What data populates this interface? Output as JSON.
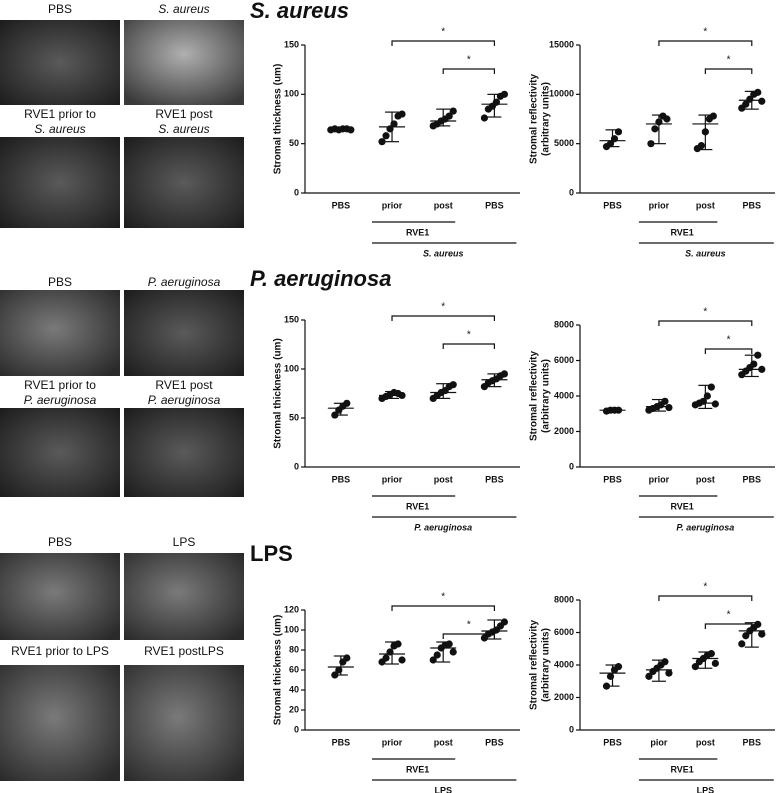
{
  "panels": [
    {
      "title": "S. aureus",
      "images": [
        [
          "PBS"
        ],
        [
          "S. aureus"
        ],
        [
          "RVE1 prior to",
          "S. aureus"
        ],
        [
          "RVE1 post",
          "S. aureus"
        ]
      ]
    },
    {
      "title": "P. aeruginosa",
      "images": [
        [
          "PBS"
        ],
        [
          "P. aeruginosa"
        ],
        [
          "RVE1 prior to",
          "P. aeruginosa"
        ],
        [
          "RVE1 post",
          "P. aeruginosa"
        ]
      ]
    },
    {
      "title": "LPS",
      "images": [
        [
          "PBS"
        ],
        [
          "LPS"
        ],
        [
          "RVE1 prior to LPS"
        ],
        [
          "RVE1 postLPS"
        ]
      ]
    }
  ],
  "chart_data": [
    {
      "type": "scatter",
      "ylabel": [
        "Stromal thickness (um)"
      ],
      "categories": [
        "PBS",
        "prior",
        "post",
        "PBS"
      ],
      "group_labels": [
        "RVE1",
        "S. aureus"
      ],
      "annotations": [
        "*",
        "*"
      ],
      "ylim": [
        0,
        150
      ],
      "yticks": [
        0,
        50,
        100,
        150
      ],
      "color": "#111111",
      "values": [
        [
          64,
          65,
          64,
          65,
          65,
          64
        ],
        [
          52,
          58,
          65,
          70,
          78,
          80
        ],
        [
          68,
          70,
          73,
          75,
          78,
          83
        ],
        [
          76,
          85,
          88,
          92,
          98,
          100
        ]
      ],
      "centers": [
        65,
        67,
        73,
        90
      ],
      "lows": [
        63,
        52,
        68,
        77
      ],
      "highs": [
        66,
        82,
        85,
        100
      ]
    },
    {
      "type": "scatter",
      "ylabel": [
        "Stromal reflectivity",
        "(arbitrary units)"
      ],
      "categories": [
        "PBS",
        "prior",
        "post",
        "PBS"
      ],
      "group_labels": [
        "RVE1",
        "S. aureus"
      ],
      "annotations": [
        "*",
        "*"
      ],
      "ylim": [
        0,
        15000
      ],
      "yticks": [
        0,
        5000,
        10000,
        15000
      ],
      "color": "#111111",
      "values": [
        [
          4700,
          5000,
          5500,
          6200
        ],
        [
          5000,
          6500,
          7200,
          7800,
          7500
        ],
        [
          4500,
          4800,
          6200,
          7500,
          7800
        ],
        [
          8600,
          9000,
          9500,
          10000,
          10200,
          9300
        ]
      ],
      "centers": [
        5300,
        7000,
        7000,
        9400
      ],
      "lows": [
        4700,
        5000,
        4400,
        8500
      ],
      "highs": [
        6400,
        7900,
        7900,
        10300
      ]
    },
    {
      "type": "scatter",
      "ylabel": [
        "Stromal thickness (um)"
      ],
      "categories": [
        "PBS",
        "prior",
        "post",
        "PBS"
      ],
      "group_labels": [
        "RVE1",
        "P. aeruginosa"
      ],
      "annotations": [
        "*",
        "*"
      ],
      "ylim": [
        0,
        150
      ],
      "yticks": [
        0,
        50,
        100,
        150
      ],
      "color": "#111111",
      "values": [
        [
          53,
          58,
          62,
          65
        ],
        [
          70,
          72,
          74,
          76,
          75,
          73
        ],
        [
          70,
          73,
          76,
          78,
          82,
          84
        ],
        [
          82,
          86,
          88,
          90,
          93,
          95
        ]
      ],
      "centers": [
        60,
        73,
        76,
        89
      ],
      "lows": [
        53,
        70,
        70,
        82
      ],
      "highs": [
        65,
        77,
        85,
        95
      ]
    },
    {
      "type": "scatter",
      "ylabel": [
        "Stromal reflectivity",
        "(arbitrary units)"
      ],
      "categories": [
        "PBS",
        "prior",
        "post",
        "PBS"
      ],
      "group_labels": [
        "RVE1",
        "P. aeruginosa"
      ],
      "annotations": [
        "*",
        "*"
      ],
      "ylim": [
        0,
        8000
      ],
      "yticks": [
        0,
        2000,
        4000,
        6000,
        8000
      ],
      "color": "#111111",
      "values": [
        [
          3150,
          3200,
          3200,
          3200
        ],
        [
          3200,
          3300,
          3400,
          3500,
          3700,
          3350
        ],
        [
          3500,
          3600,
          3700,
          4000,
          4500,
          3550
        ],
        [
          5200,
          5400,
          5600,
          5800,
          6300,
          5500
        ]
      ],
      "centers": [
        3200,
        3400,
        3600,
        5500
      ],
      "lows": [
        3150,
        3150,
        3300,
        5100
      ],
      "highs": [
        3250,
        3800,
        4600,
        6300
      ]
    },
    {
      "type": "scatter",
      "ylabel": [
        "Stromal thickness (um)"
      ],
      "categories": [
        "PBS",
        "prior",
        "post",
        "PBS"
      ],
      "group_labels": [
        "RVE1",
        "LPS"
      ],
      "annotations": [
        "*",
        "*"
      ],
      "ylim": [
        0,
        120
      ],
      "yticks": [
        0,
        20,
        40,
        60,
        80,
        100,
        120
      ],
      "color": "#111111",
      "values": [
        [
          55,
          60,
          68,
          72
        ],
        [
          68,
          72,
          78,
          84,
          86,
          70
        ],
        [
          70,
          75,
          82,
          85,
          86,
          78
        ],
        [
          92,
          96,
          98,
          100,
          104,
          108
        ]
      ],
      "centers": [
        63,
        76,
        82,
        99
      ],
      "lows": [
        55,
        66,
        68,
        91
      ],
      "highs": [
        74,
        88,
        88,
        110
      ]
    },
    {
      "type": "scatter",
      "ylabel": [
        "Stromal reflectivity",
        "(arbitrary units)"
      ],
      "categories": [
        "PBS",
        "pior",
        "post",
        "PBS"
      ],
      "group_labels": [
        "RVE1",
        "LPS"
      ],
      "annotations": [
        "*",
        "*"
      ],
      "ylim": [
        0,
        8000
      ],
      "yticks": [
        0,
        2000,
        4000,
        6000,
        8000
      ],
      "color": "#111111",
      "values": [
        [
          2700,
          3300,
          3700,
          3900
        ],
        [
          3300,
          3600,
          3800,
          4000,
          4200,
          3500
        ],
        [
          3900,
          4200,
          4400,
          4600,
          4700,
          4100
        ],
        [
          5300,
          5800,
          6100,
          6300,
          6500,
          5900
        ]
      ],
      "centers": [
        3500,
        3700,
        4400,
        6100
      ],
      "lows": [
        2700,
        3000,
        3800,
        5100
      ],
      "highs": [
        4000,
        4300,
        4800,
        6600
      ]
    }
  ]
}
